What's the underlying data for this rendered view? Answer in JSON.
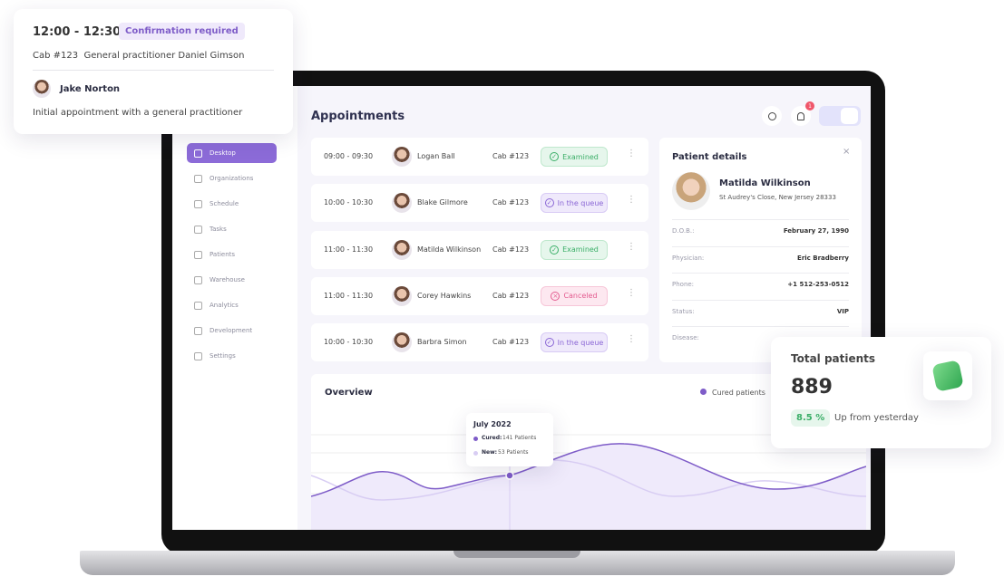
{
  "popup": {
    "time": "12:00 - 12:30",
    "badge": "Confirmation required",
    "location": "Cab #123  General practitioner Daniel Gimson",
    "patient": "Jake Norton",
    "note": "Initial appointment with a general practitioner"
  },
  "sidebar": [
    "Desktop",
    "Organizations",
    "Schedule",
    "Tasks",
    "Patients",
    "Warehouse",
    "Analytics",
    "Development",
    "Settings"
  ],
  "header": {
    "title": "Appointments",
    "notifications": "1"
  },
  "appointments": [
    {
      "time": "09:00 - 09:30",
      "name": "Logan Ball",
      "cab": "Cab #123",
      "status": "Examined"
    },
    {
      "time": "10:00 - 10:30",
      "name": "Blake Gilmore",
      "cab": "Cab #123",
      "status": "In the queue"
    },
    {
      "time": "11:00 - 11:30",
      "name": "Matilda Wilkinson",
      "cab": "Cab #123",
      "status": "Examined"
    },
    {
      "time": "11:00 - 11:30",
      "name": "Corey Hawkins",
      "cab": "Cab #123",
      "status": "Canceled"
    },
    {
      "time": "10:00 - 10:30",
      "name": "Barbra Simon",
      "cab": "Cab #123",
      "status": "In the queue"
    }
  ],
  "patient_details": {
    "title": "Patient details",
    "name": "Matilda Wilkinson",
    "address": "St Audrey's Close, New Jersey 28333",
    "fields": [
      {
        "label": "D.O.B.:",
        "value": "February 27, 1990"
      },
      {
        "label": "Physician:",
        "value": "Eric Bradberry"
      },
      {
        "label": "Phone:",
        "value": "+1 512-253-0512"
      },
      {
        "label": "Status:",
        "value": "VIP"
      },
      {
        "label": "Disease:",
        "value": null
      }
    ]
  },
  "overview": {
    "title": "Overview",
    "legend": "Cured patients",
    "tooltip": {
      "title": "July 2022",
      "cured_label": "Cured:",
      "cured_value": "141 Patients",
      "new_label": "New:",
      "new_value": "53 Patients"
    }
  },
  "total_card": {
    "title": "Total patients",
    "value": "889",
    "change": "8.5 %",
    "caption": "Up from yesterday"
  }
}
